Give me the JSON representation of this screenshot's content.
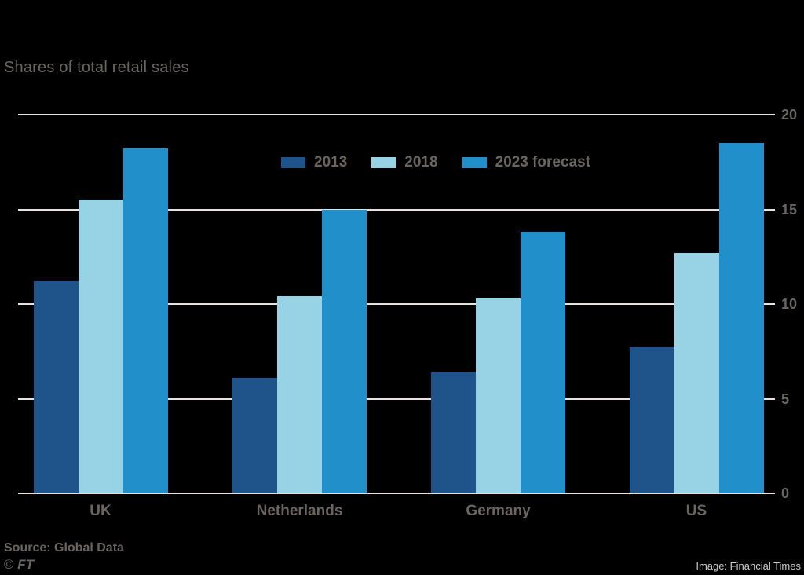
{
  "title": "Shares of total retail sales",
  "chart_data": {
    "type": "bar",
    "title": "Shares of total retail sales",
    "categories": [
      "UK",
      "Netherlands",
      "Germany",
      "US"
    ],
    "series": [
      {
        "name": "2013",
        "color": "#1f548b",
        "values": [
          11.2,
          6.1,
          6.4,
          7.7
        ]
      },
      {
        "name": "2018",
        "color": "#97d3e5",
        "values": [
          15.5,
          10.4,
          10.3,
          12.7
        ]
      },
      {
        "name": "2023 forecast",
        "color": "#218fc9",
        "values": [
          18.2,
          15.0,
          13.8,
          18.5
        ]
      }
    ],
    "ylim": [
      0,
      20
    ],
    "yticks": [
      0,
      5,
      10,
      15,
      20
    ],
    "grid": "horizontal",
    "y_axis_side": "right",
    "legend_position": "top-center-inside"
  },
  "footer": {
    "source": "Source: Global Data",
    "copyright_symbol": "©",
    "copyright_ft": "FT",
    "credit": "Image: Financial Times"
  },
  "colors": {
    "background": "#000000",
    "gridline": "#e8e3da",
    "text": "#6b6560",
    "credit_text": "#cdcdcd"
  }
}
